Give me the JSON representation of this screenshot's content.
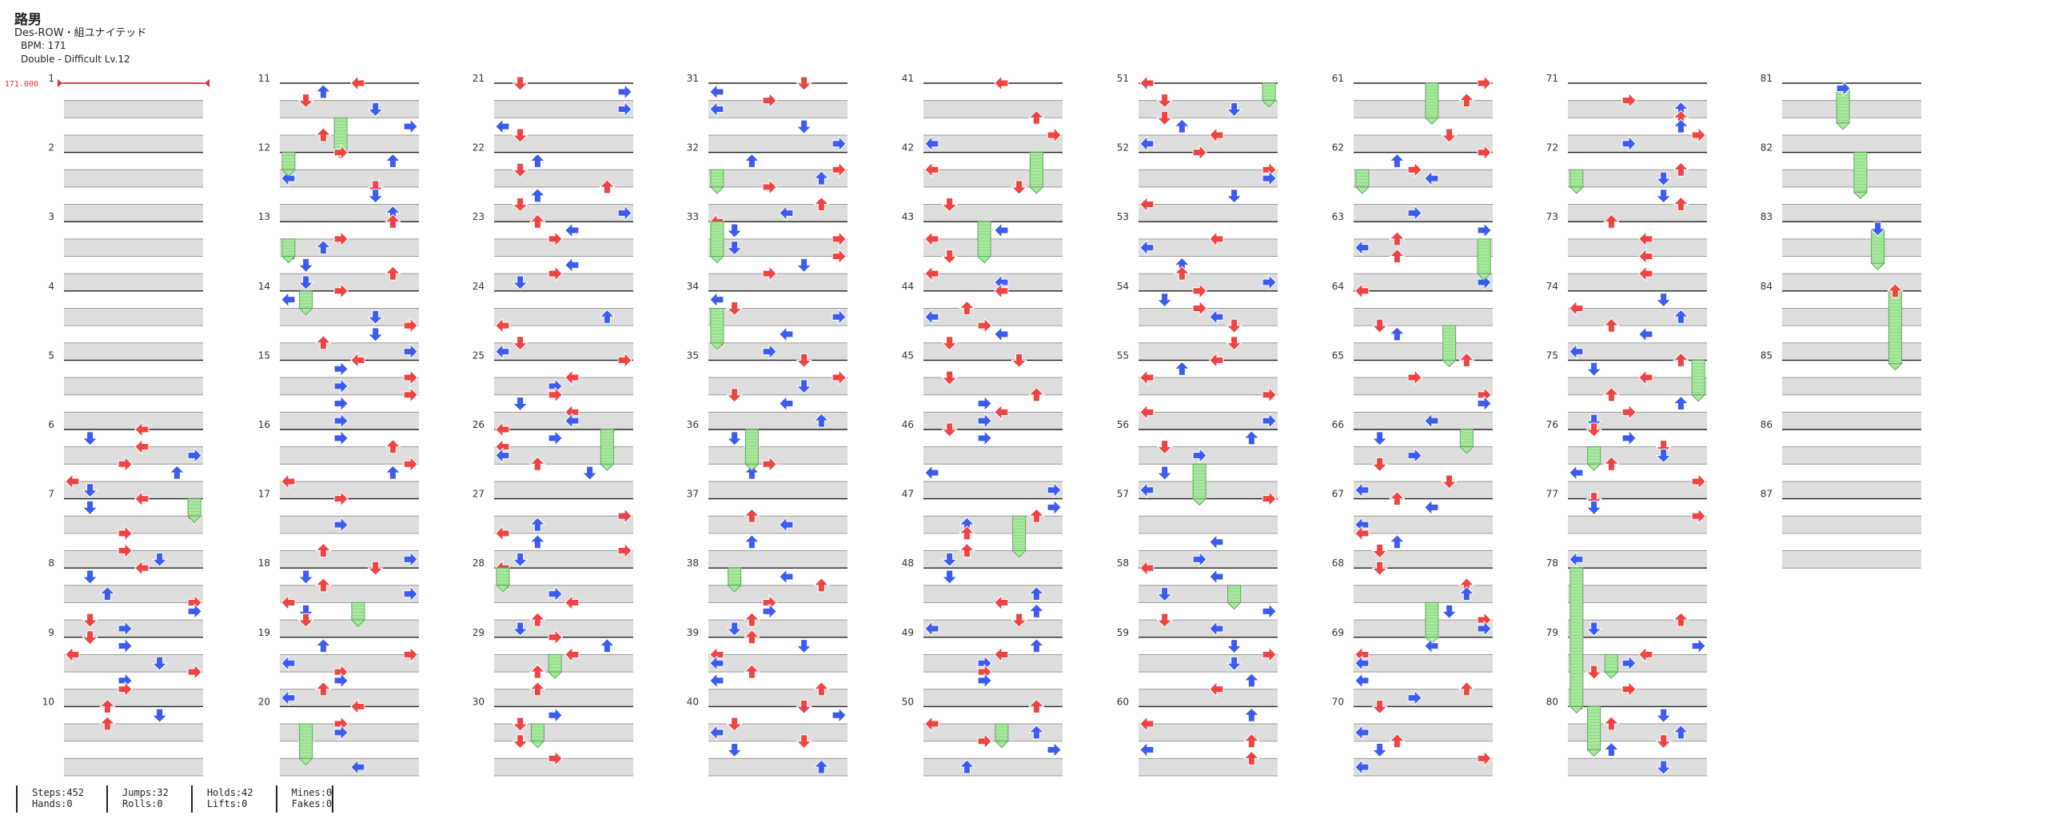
{
  "header": {
    "title": "路男",
    "subtitle": "Des-ROW・組ユナイテッド",
    "bpm": "BPM: 171",
    "difficulty": "Double - Difficult  Lv.12"
  },
  "chart": {
    "bpm_marker": "171.000",
    "total_measures": 87,
    "measures_per_column": 10,
    "lanes": 8,
    "colors": {
      "red": "#ee4444",
      "blue": "#3c5cf0",
      "hold": "#a8ea9c",
      "yellow": "#f2de3a",
      "stripe": "#dedede",
      "bpm_line": "#e03030"
    }
  },
  "stats": [
    {
      "line1": "Steps:452",
      "line2": "Hands:0"
    },
    {
      "line1": "Jumps:32",
      "line2": "Rolls:0"
    },
    {
      "line1": "Holds:42",
      "line2": "Lifts:0"
    },
    {
      "line1": "Mines:0",
      "line2": "Fakes:0"
    }
  ]
}
